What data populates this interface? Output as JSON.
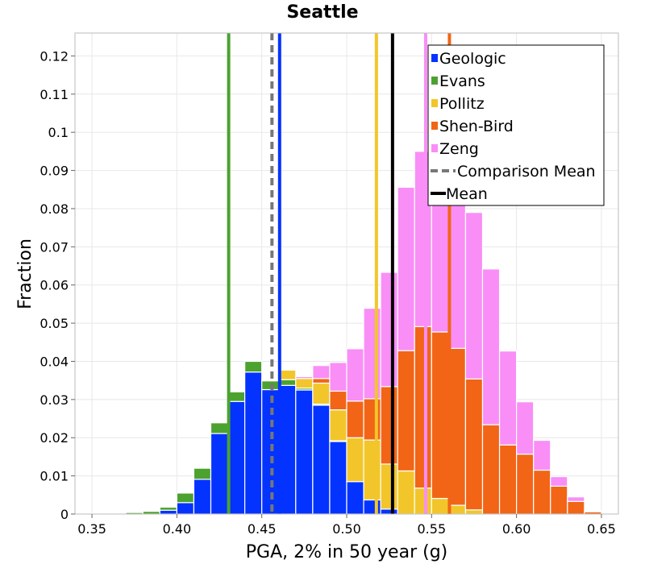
{
  "chart_data": {
    "type": "bar",
    "stacked": true,
    "title": "Seattle",
    "xlabel": "PGA, 2% in 50 year (g)",
    "ylabel": "Fraction",
    "xlim": [
      0.34,
      0.66
    ],
    "ylim": [
      0,
      0.126
    ],
    "grid": true,
    "legend_position": "top-right",
    "x_ticks": [
      0.35,
      0.4,
      0.45,
      0.5,
      0.55,
      0.6,
      0.65
    ],
    "x_tick_labels": [
      "0.35",
      "0.40",
      "0.45",
      "0.50",
      "0.55",
      "0.60",
      "0.65"
    ],
    "y_ticks": [
      0,
      0.01,
      0.02,
      0.03,
      0.04,
      0.05,
      0.06,
      0.07,
      0.08,
      0.09,
      0.1,
      0.11,
      0.12
    ],
    "y_tick_labels": [
      "0",
      "0.01",
      "0.02",
      "0.03",
      "0.04",
      "0.05",
      "0.06",
      "0.07",
      "0.08",
      "0.09",
      "0.1",
      "0.11",
      "0.12"
    ],
    "bin_width": 0.01,
    "bin_centers": [
      0.355,
      0.365,
      0.375,
      0.385,
      0.395,
      0.405,
      0.415,
      0.425,
      0.435,
      0.445,
      0.455,
      0.465,
      0.475,
      0.485,
      0.495,
      0.505,
      0.515,
      0.525,
      0.535,
      0.545,
      0.555,
      0.565,
      0.575,
      0.585,
      0.595,
      0.605,
      0.615,
      0.625,
      0.635,
      0.645
    ],
    "series": [
      {
        "name": "Geologic",
        "color": "#0433ff",
        "values": [
          0,
          0,
          0,
          0,
          0.001,
          0.003,
          0.0091,
          0.0211,
          0.0295,
          0.0372,
          0.0326,
          0.0337,
          0.0325,
          0.0285,
          0.019,
          0.0085,
          0.0037,
          0.0013,
          0,
          0,
          0,
          0,
          0,
          0,
          0,
          0,
          0,
          0,
          0,
          0
        ]
      },
      {
        "name": "Evans",
        "color": "#4ca22f",
        "values": [
          0.0002,
          0.0002,
          0.0004,
          0.0007,
          0.0008,
          0.0025,
          0.0029,
          0.0028,
          0.0025,
          0.0028,
          0.0023,
          0.0015,
          0.0005,
          0.0003,
          0.0002,
          0,
          0,
          0,
          0,
          0,
          0,
          0,
          0,
          0,
          0,
          0,
          0,
          0,
          0,
          0
        ]
      },
      {
        "name": "Pollitz",
        "color": "#f2c62a",
        "values": [
          0,
          0,
          0,
          0,
          0,
          0,
          0,
          0,
          0,
          0,
          0.0002,
          0.0025,
          0.0025,
          0.0055,
          0.0081,
          0.0115,
          0.0157,
          0.0118,
          0.0113,
          0.0068,
          0.0041,
          0.0023,
          0.0011,
          0,
          0,
          0,
          0,
          0,
          0,
          0
        ]
      },
      {
        "name": "Shen-Bird",
        "color": "#f26516",
        "values": [
          0,
          0,
          0,
          0,
          0,
          0,
          0,
          0,
          0,
          0,
          0,
          0,
          0,
          0.0012,
          0.0049,
          0.0096,
          0.0108,
          0.0203,
          0.0315,
          0.0423,
          0.0436,
          0.0411,
          0.0343,
          0.0234,
          0.0181,
          0.0157,
          0.0115,
          0.0073,
          0.0033,
          0.0006
        ]
      },
      {
        "name": "Zeng",
        "color": "#f98ef6",
        "values": [
          0,
          0,
          0,
          0,
          0,
          0,
          0,
          0,
          0,
          0,
          0,
          0,
          0.0005,
          0.0034,
          0.0075,
          0.0137,
          0.0237,
          0.0299,
          0.0428,
          0.0459,
          0.0471,
          0.0399,
          0.0436,
          0.0408,
          0.0246,
          0.0137,
          0.0078,
          0.0025,
          0.0012,
          0.0002
        ]
      }
    ],
    "vertical_lines": [
      {
        "name": "Geologic",
        "x": 0.4605,
        "color": "#0433ff",
        "style": "solid"
      },
      {
        "name": "Evans",
        "x": 0.4305,
        "color": "#4ca22f",
        "style": "solid"
      },
      {
        "name": "Pollitz",
        "x": 0.5175,
        "color": "#f2c62a",
        "style": "solid"
      },
      {
        "name": "Shen-Bird",
        "x": 0.5605,
        "color": "#f26516",
        "style": "solid"
      },
      {
        "name": "Zeng",
        "x": 0.5465,
        "color": "#f98ef6",
        "style": "solid"
      },
      {
        "name": "Comparison Mean",
        "x": 0.456,
        "color": "#777777",
        "style": "dashed"
      },
      {
        "name": "Mean",
        "x": 0.527,
        "color": "#000000",
        "style": "solid"
      }
    ],
    "legend": [
      {
        "label": "Geologic",
        "color": "#0433ff",
        "kind": "patch"
      },
      {
        "label": "Evans",
        "color": "#4ca22f",
        "kind": "patch"
      },
      {
        "label": "Pollitz",
        "color": "#f2c62a",
        "kind": "patch"
      },
      {
        "label": "Shen-Bird",
        "color": "#f26516",
        "kind": "patch"
      },
      {
        "label": "Zeng",
        "color": "#f98ef6",
        "kind": "patch"
      },
      {
        "label": "Comparison Mean",
        "color": "#777777",
        "kind": "dashed-line"
      },
      {
        "label": "Mean",
        "color": "#000000",
        "kind": "line"
      }
    ]
  }
}
